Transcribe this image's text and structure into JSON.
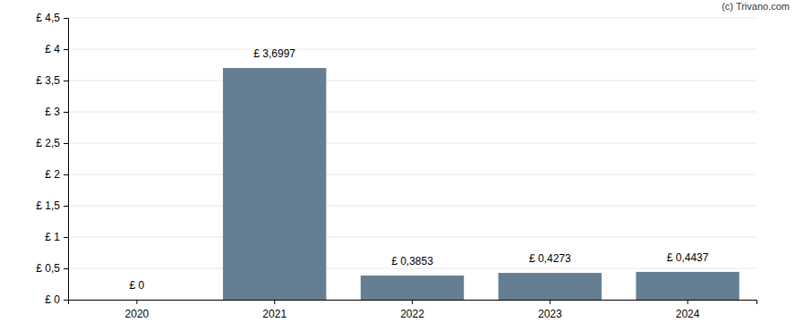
{
  "chart_data": {
    "type": "bar",
    "annotations": [
      "(c) Trivano.com"
    ],
    "categories": [
      "2020",
      "2021",
      "2022",
      "2023",
      "2024"
    ],
    "values": [
      0,
      3.6997,
      0.3853,
      0.4273,
      0.4437
    ],
    "value_labels": [
      "£ 0",
      "£ 3,6997",
      "£ 0,3853",
      "£ 0,4273",
      "£ 0,4437"
    ],
    "data_labels": true,
    "color": "#647f94",
    "ylim": [
      0,
      4.5
    ],
    "yticks": [
      {
        "value": 0,
        "label": "£ 0"
      },
      {
        "value": 0.5,
        "label": "£ 0,5"
      },
      {
        "value": 1,
        "label": "£ 1"
      },
      {
        "value": 1.5,
        "label": "£ 1,5"
      },
      {
        "value": 2,
        "label": "£ 2"
      },
      {
        "value": 2.5,
        "label": "£ 2,5"
      },
      {
        "value": 3,
        "label": "£ 3"
      },
      {
        "value": 3.5,
        "label": "£ 3,5"
      },
      {
        "value": 4,
        "label": "£ 4"
      },
      {
        "value": 4.5,
        "label": "£ 4,5"
      }
    ],
    "grid": true
  }
}
